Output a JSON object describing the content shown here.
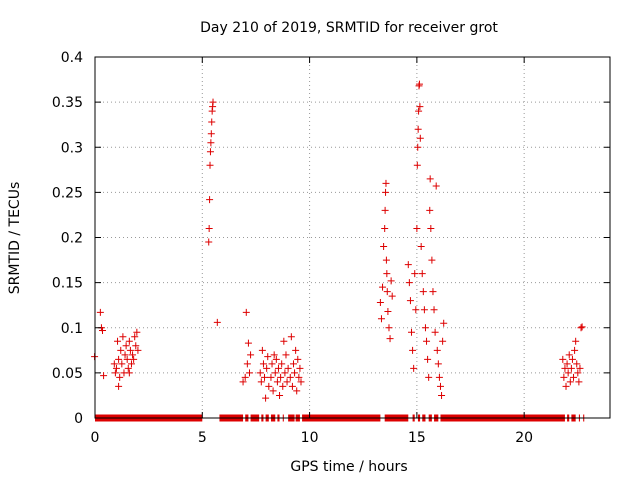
{
  "chart_data": {
    "type": "scatter",
    "title": "Day 210 of 2019, SRMTID for receiver grot",
    "xlabel": "GPS time / hours",
    "ylabel": "SRMTID / TECUs",
    "xlim": [
      0,
      24
    ],
    "ylim": [
      0,
      0.4
    ],
    "xticks": [
      0,
      5,
      10,
      15,
      20
    ],
    "xtick_labels": [
      "0",
      "5",
      "10",
      "15",
      "20"
    ],
    "yticks": [
      0,
      0.05,
      0.1,
      0.15,
      0.2,
      0.25,
      0.3,
      0.35,
      0.4
    ],
    "ytick_labels": [
      "0",
      "0.05",
      "0.1",
      "0.15",
      "0.2",
      "0.25",
      "0.3",
      "0.35",
      "0.4"
    ],
    "grid": true,
    "marker": "+",
    "color": "#dd0000",
    "series": [
      {
        "name": "SRMTID",
        "points": [
          [
            -0.02,
            0.068
          ],
          [
            0.25,
            0.117
          ],
          [
            0.3,
            0.1
          ],
          [
            0.35,
            0.097
          ],
          [
            0.4,
            0.047
          ],
          [
            0.9,
            0.06
          ],
          [
            0.95,
            0.05
          ],
          [
            1.0,
            0.055
          ],
          [
            1.05,
            0.085
          ],
          [
            1.1,
            0.065
          ],
          [
            1.15,
            0.045
          ],
          [
            1.2,
            0.075
          ],
          [
            1.25,
            0.06
          ],
          [
            1.3,
            0.09
          ],
          [
            1.35,
            0.05
          ],
          [
            1.4,
            0.07
          ],
          [
            1.45,
            0.08
          ],
          [
            1.5,
            0.065
          ],
          [
            1.55,
            0.055
          ],
          [
            1.6,
            0.085
          ],
          [
            1.65,
            0.075
          ],
          [
            1.7,
            0.06
          ],
          [
            1.75,
            0.07
          ],
          [
            1.8,
            0.065
          ],
          [
            1.85,
            0.09
          ],
          [
            1.9,
            0.08
          ],
          [
            1.95,
            0.095
          ],
          [
            2.0,
            0.075
          ],
          [
            1.1,
            0.035
          ],
          [
            1.6,
            0.05
          ],
          [
            5.3,
            0.195
          ],
          [
            5.32,
            0.21
          ],
          [
            5.34,
            0.242
          ],
          [
            5.36,
            0.28
          ],
          [
            5.38,
            0.295
          ],
          [
            5.4,
            0.305
          ],
          [
            5.42,
            0.315
          ],
          [
            5.44,
            0.328
          ],
          [
            5.46,
            0.34
          ],
          [
            5.48,
            0.345
          ],
          [
            5.5,
            0.35
          ],
          [
            5.7,
            0.106
          ],
          [
            6.9,
            0.04
          ],
          [
            7.0,
            0.045
          ],
          [
            7.05,
            0.117
          ],
          [
            7.1,
            0.06
          ],
          [
            7.15,
            0.083
          ],
          [
            7.2,
            0.05
          ],
          [
            7.25,
            0.07
          ],
          [
            7.7,
            0.05
          ],
          [
            7.75,
            0.04
          ],
          [
            7.8,
            0.075
          ],
          [
            7.85,
            0.06
          ],
          [
            7.9,
            0.045
          ],
          [
            7.95,
            0.022
          ],
          [
            8.0,
            0.055
          ],
          [
            8.05,
            0.068
          ],
          [
            8.1,
            0.035
          ],
          [
            8.2,
            0.045
          ],
          [
            8.25,
            0.06
          ],
          [
            8.3,
            0.03
          ],
          [
            8.35,
            0.07
          ],
          [
            8.4,
            0.05
          ],
          [
            8.45,
            0.065
          ],
          [
            8.5,
            0.04
          ],
          [
            8.55,
            0.055
          ],
          [
            8.6,
            0.025
          ],
          [
            8.65,
            0.045
          ],
          [
            8.7,
            0.06
          ],
          [
            8.75,
            0.035
          ],
          [
            8.8,
            0.085
          ],
          [
            8.85,
            0.05
          ],
          [
            8.9,
            0.07
          ],
          [
            8.95,
            0.04
          ],
          [
            9.0,
            0.055
          ],
          [
            9.1,
            0.045
          ],
          [
            9.15,
            0.09
          ],
          [
            9.2,
            0.035
          ],
          [
            9.25,
            0.06
          ],
          [
            9.3,
            0.05
          ],
          [
            9.35,
            0.075
          ],
          [
            9.4,
            0.03
          ],
          [
            9.45,
            0.065
          ],
          [
            9.5,
            0.045
          ],
          [
            9.55,
            0.055
          ],
          [
            9.6,
            0.04
          ],
          [
            13.3,
            0.128
          ],
          [
            13.35,
            0.11
          ],
          [
            13.4,
            0.145
          ],
          [
            13.45,
            0.19
          ],
          [
            13.5,
            0.21
          ],
          [
            13.52,
            0.23
          ],
          [
            13.54,
            0.25
          ],
          [
            13.56,
            0.26
          ],
          [
            13.58,
            0.175
          ],
          [
            13.6,
            0.16
          ],
          [
            13.62,
            0.14
          ],
          [
            13.65,
            0.118
          ],
          [
            13.7,
            0.1
          ],
          [
            13.75,
            0.088
          ],
          [
            13.8,
            0.152
          ],
          [
            13.85,
            0.135
          ],
          [
            14.6,
            0.17
          ],
          [
            14.65,
            0.15
          ],
          [
            14.7,
            0.13
          ],
          [
            14.75,
            0.095
          ],
          [
            14.8,
            0.075
          ],
          [
            14.85,
            0.055
          ],
          [
            14.9,
            0.16
          ],
          [
            14.95,
            0.12
          ],
          [
            15.0,
            0.21
          ],
          [
            15.02,
            0.28
          ],
          [
            15.04,
            0.3
          ],
          [
            15.06,
            0.32
          ],
          [
            15.08,
            0.34
          ],
          [
            15.1,
            0.368
          ],
          [
            15.12,
            0.37
          ],
          [
            15.14,
            0.345
          ],
          [
            15.16,
            0.31
          ],
          [
            15.2,
            0.19
          ],
          [
            15.25,
            0.16
          ],
          [
            15.3,
            0.14
          ],
          [
            15.35,
            0.12
          ],
          [
            15.4,
            0.1
          ],
          [
            15.45,
            0.085
          ],
          [
            15.5,
            0.065
          ],
          [
            15.55,
            0.045
          ],
          [
            15.6,
            0.23
          ],
          [
            15.62,
            0.265
          ],
          [
            15.65,
            0.21
          ],
          [
            15.7,
            0.175
          ],
          [
            15.75,
            0.14
          ],
          [
            15.8,
            0.12
          ],
          [
            15.85,
            0.095
          ],
          [
            15.9,
            0.257
          ],
          [
            15.95,
            0.075
          ],
          [
            16.0,
            0.06
          ],
          [
            16.05,
            0.045
          ],
          [
            16.1,
            0.035
          ],
          [
            16.15,
            0.025
          ],
          [
            16.2,
            0.085
          ],
          [
            16.25,
            0.105
          ],
          [
            21.8,
            0.065
          ],
          [
            21.85,
            0.045
          ],
          [
            21.9,
            0.055
          ],
          [
            21.95,
            0.035
          ],
          [
            22.0,
            0.06
          ],
          [
            22.05,
            0.05
          ],
          [
            22.1,
            0.07
          ],
          [
            22.15,
            0.04
          ],
          [
            22.2,
            0.055
          ],
          [
            22.25,
            0.065
          ],
          [
            22.3,
            0.045
          ],
          [
            22.35,
            0.075
          ],
          [
            22.4,
            0.085
          ],
          [
            22.45,
            0.06
          ],
          [
            22.5,
            0.05
          ],
          [
            22.55,
            0.04
          ],
          [
            22.6,
            0.055
          ],
          [
            22.65,
            0.1
          ],
          [
            22.7,
            0.101
          ]
        ]
      }
    ],
    "zero_baseline_segments": [
      [
        0.0,
        5.0
      ],
      [
        5.8,
        6.9
      ],
      [
        7.0,
        7.15
      ],
      [
        7.25,
        7.65
      ],
      [
        7.75,
        7.85
      ],
      [
        7.95,
        8.1
      ],
      [
        8.2,
        8.4
      ],
      [
        8.5,
        8.6
      ],
      [
        8.75,
        8.8
      ],
      [
        9.0,
        9.3
      ],
      [
        9.35,
        9.55
      ],
      [
        9.65,
        13.3
      ],
      [
        13.5,
        14.6
      ],
      [
        14.8,
        14.9
      ],
      [
        15.05,
        15.15
      ],
      [
        15.25,
        15.4
      ],
      [
        15.55,
        15.7
      ],
      [
        15.8,
        16.0
      ],
      [
        16.1,
        21.9
      ],
      [
        22.0,
        22.1
      ],
      [
        22.2,
        22.4
      ],
      [
        22.55,
        22.6
      ],
      [
        22.75,
        22.8
      ]
    ]
  }
}
